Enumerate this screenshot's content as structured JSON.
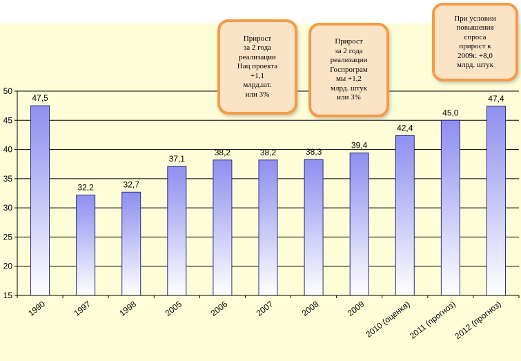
{
  "chart_data": {
    "type": "bar",
    "title": "",
    "xlabel": "",
    "ylabel": "",
    "ylim": [
      15,
      50
    ],
    "yticks": [
      15,
      20,
      25,
      30,
      35,
      40,
      45,
      50
    ],
    "grid": true,
    "categories": [
      "1990",
      "1997",
      "1998",
      "2005",
      "2006",
      "2007",
      "2008",
      "2009",
      "2010 (оценка)",
      "2011 (прогноз)",
      "2012 (прогноз)"
    ],
    "values": [
      47.5,
      32.2,
      32.7,
      37.1,
      38.2,
      38.2,
      38.3,
      39.4,
      42.4,
      45.0,
      47.4
    ],
    "value_labels": [
      "47,5",
      "32,2",
      "32,7",
      "37,1",
      "38,2",
      "38,2",
      "38,3",
      "39,4",
      "42,4",
      "45,0",
      "47,4"
    ],
    "colors": {
      "bar_top": "#8f8ff0",
      "bar_bottom": "#ffffff",
      "bar_border": "#2b2b80",
      "plot_background": "#fdfdd8",
      "gridline": "#000000"
    }
  },
  "callouts": [
    {
      "text": "Прирост\nза 2 года\nреализации\nНац проекта\n+1,1\nмлрд.шт.\nили 3%"
    },
    {
      "text": "Прирост\nза 2 года\nреализации\nГоспрограм\nмы +1,2\nмлрд. штук\nили 3%"
    },
    {
      "text": "При условии\nповышения\nспроса\nприрост к\n2009г. +8,0\nмлрд. штук"
    }
  ],
  "callout_colors": {
    "border": "#f49b47",
    "fill": "#fbe3c6"
  }
}
